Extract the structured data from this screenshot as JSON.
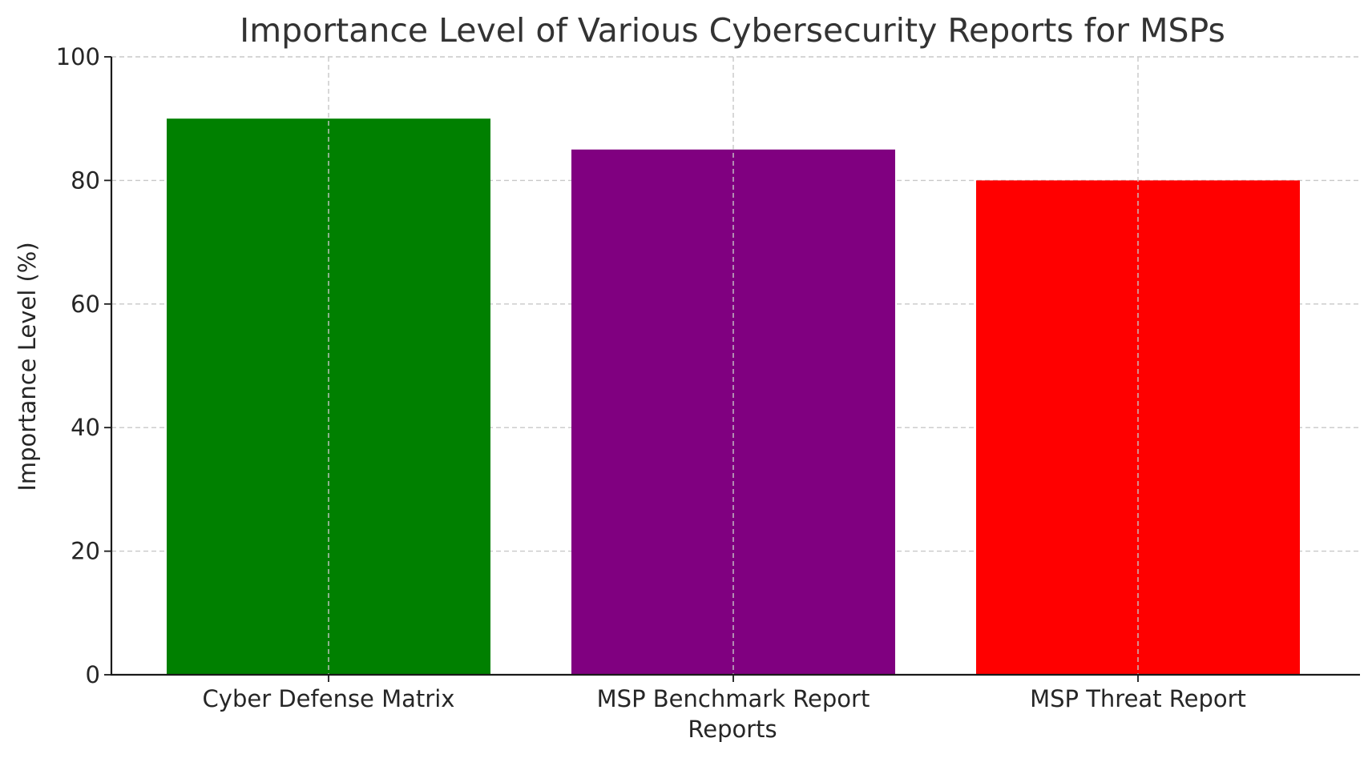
{
  "chart_data": {
    "type": "bar",
    "title": "Importance Level of Various Cybersecurity Reports for MSPs",
    "xlabel": "Reports",
    "ylabel": "Importance Level (%)",
    "categories": [
      "Cyber Defense Matrix",
      "MSP Benchmark Report",
      "MSP Threat Report"
    ],
    "values": [
      90,
      85,
      80
    ],
    "colors": [
      "#008000",
      "#800080",
      "#ff0000"
    ],
    "ylim": [
      0,
      100
    ],
    "yticks": [
      0,
      20,
      40,
      60,
      80,
      100
    ],
    "grid": true
  }
}
